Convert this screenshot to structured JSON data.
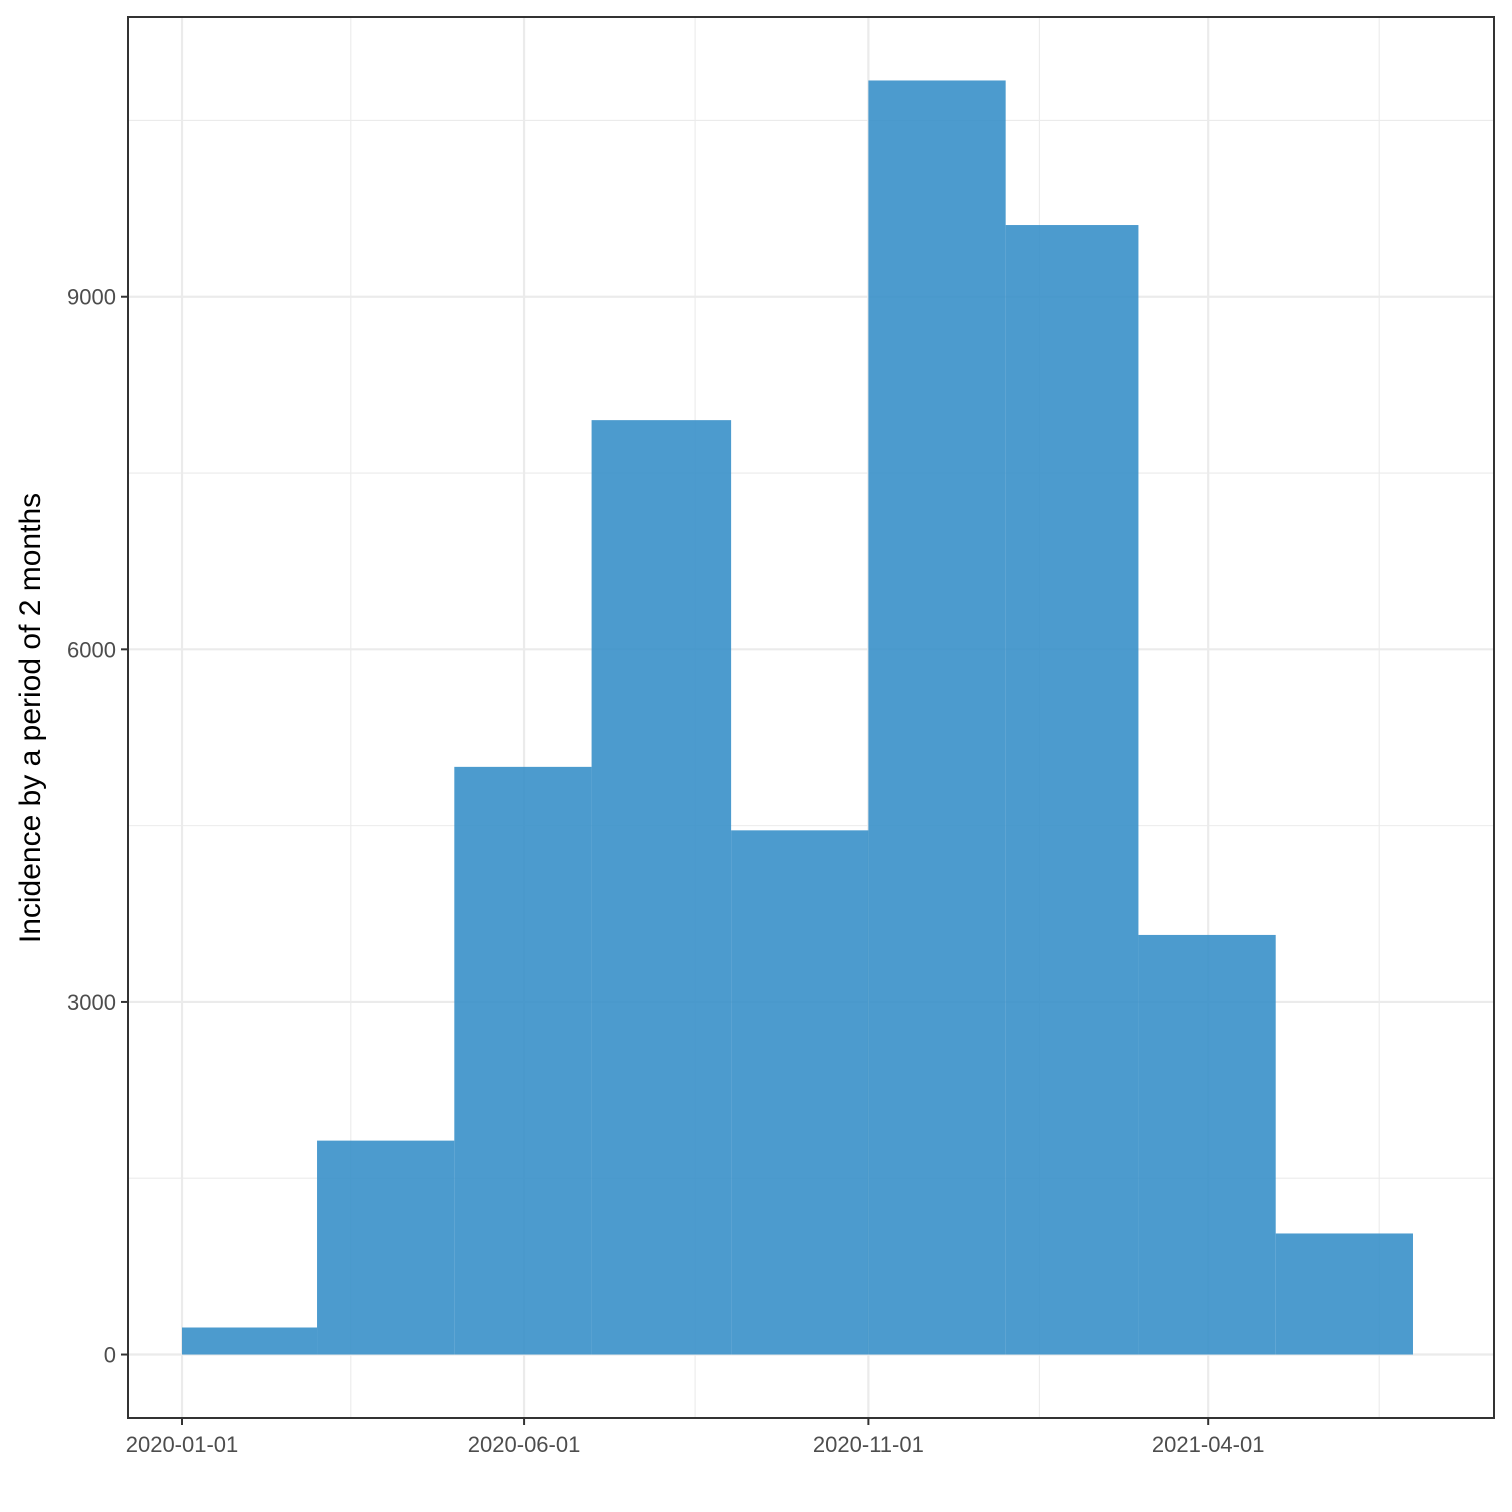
{
  "chart_data": {
    "type": "bar",
    "subtype": "histogram",
    "title": "",
    "xlabel": "",
    "ylabel": "Incidence by a period of 2 months",
    "bin_width_months": 2,
    "bins": [
      {
        "start": "2020-01-01",
        "end": "2020-03-01",
        "value": 230
      },
      {
        "start": "2020-03-01",
        "end": "2020-05-01",
        "value": 1820
      },
      {
        "start": "2020-05-01",
        "end": "2020-07-01",
        "value": 5000
      },
      {
        "start": "2020-07-01",
        "end": "2020-09-01",
        "value": 7950
      },
      {
        "start": "2020-09-01",
        "end": "2020-11-01",
        "value": 4460
      },
      {
        "start": "2020-11-01",
        "end": "2021-01-01",
        "value": 10840
      },
      {
        "start": "2021-01-01",
        "end": "2021-03-01",
        "value": 9610
      },
      {
        "start": "2021-03-01",
        "end": "2021-05-01",
        "value": 3570
      },
      {
        "start": "2021-05-01",
        "end": "2021-07-01",
        "value": 1030
      }
    ],
    "x_ticks": [
      "2020-01-01",
      "2020-06-01",
      "2020-11-01",
      "2021-04-01"
    ],
    "x_minor_ticks": [
      "2020-03-16",
      "2020-08-16",
      "2021-01-16",
      "2021-06-16"
    ],
    "xlim": [
      "2019-12-08",
      "2021-08-06"
    ],
    "y_ticks": [
      0,
      3000,
      6000,
      9000
    ],
    "y_minor_ticks": [
      1500,
      4500,
      7500,
      10500
    ],
    "ylim": [
      -540,
      11380
    ],
    "grid": true,
    "bar_color": "#3990C9",
    "bar_opacity": 0.9,
    "background": "#FFFFFF"
  }
}
